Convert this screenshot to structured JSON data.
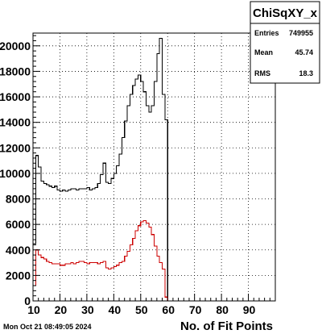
{
  "timestamp": "Mon Oct 21 08:49:05 2024",
  "stats": {
    "title": "ChiSqXY_x",
    "rows": [
      {
        "label": "Entries",
        "value": "749955"
      },
      {
        "label": "Mean",
        "value": "45.74"
      },
      {
        "label": "RMS",
        "value": "18.3"
      }
    ]
  },
  "chart_data": {
    "type": "line",
    "title": "",
    "xlabel": "No. of Fit Points",
    "ylabel": "",
    "xlim": [
      10,
      100
    ],
    "ylim": [
      0,
      21000
    ],
    "x_ticks": [
      10,
      20,
      30,
      40,
      50,
      60,
      70,
      80,
      90
    ],
    "y_ticks": [
      0,
      2000,
      4000,
      6000,
      8000,
      10000,
      12000,
      14000,
      16000,
      18000,
      20000
    ],
    "grid": true,
    "colors": {
      "black_series": "#000000",
      "red_series": "#cc0000"
    },
    "bin_start": 10,
    "bin_width": 1,
    "series": [
      {
        "values": [
          4500,
          11400,
          10500,
          9400,
          9200,
          9100,
          9000,
          8900,
          9000,
          8700,
          8600,
          8700,
          8600,
          8700,
          8800,
          8800,
          8700,
          8800,
          8800,
          8800,
          8900,
          8700,
          8800,
          8900,
          9200,
          9900,
          10800,
          9300,
          9200,
          9600,
          10000,
          10600,
          11500,
          12800,
          14100,
          15300,
          16200,
          16900,
          17400,
          17700,
          17200,
          16400,
          15300,
          14800,
          15300,
          17200,
          19400,
          20600,
          16200,
          14200,
          0,
          0,
          0,
          0,
          0,
          0,
          0,
          0,
          0,
          0,
          0,
          0,
          0,
          0,
          0,
          0,
          0,
          0,
          0,
          0,
          0,
          0,
          0,
          0,
          0,
          0,
          0,
          0,
          0,
          0,
          0,
          0,
          0,
          0,
          0,
          0,
          0,
          0,
          0,
          0
        ]
      },
      {
        "values": [
          1200,
          4000,
          3600,
          3400,
          3300,
          3100,
          3000,
          2900,
          2900,
          2900,
          2800,
          2800,
          2900,
          2900,
          3000,
          2900,
          3000,
          3100,
          3100,
          3000,
          2900,
          3000,
          3000,
          3000,
          2900,
          3000,
          3100,
          2600,
          2500,
          2600,
          2700,
          2800,
          3000,
          3100,
          3500,
          3900,
          4400,
          4900,
          5500,
          5900,
          6200,
          6300,
          6100,
          5800,
          5200,
          4300,
          3500,
          3000,
          2500,
          300,
          0,
          0,
          0,
          0,
          0,
          0,
          0,
          0,
          0,
          0,
          0,
          0,
          0,
          0,
          0,
          0,
          0,
          0,
          0,
          0,
          0,
          0,
          0,
          0,
          0,
          0,
          0,
          0,
          0,
          0,
          0,
          0,
          0,
          0,
          0,
          0,
          0,
          0,
          0,
          0
        ]
      }
    ]
  }
}
